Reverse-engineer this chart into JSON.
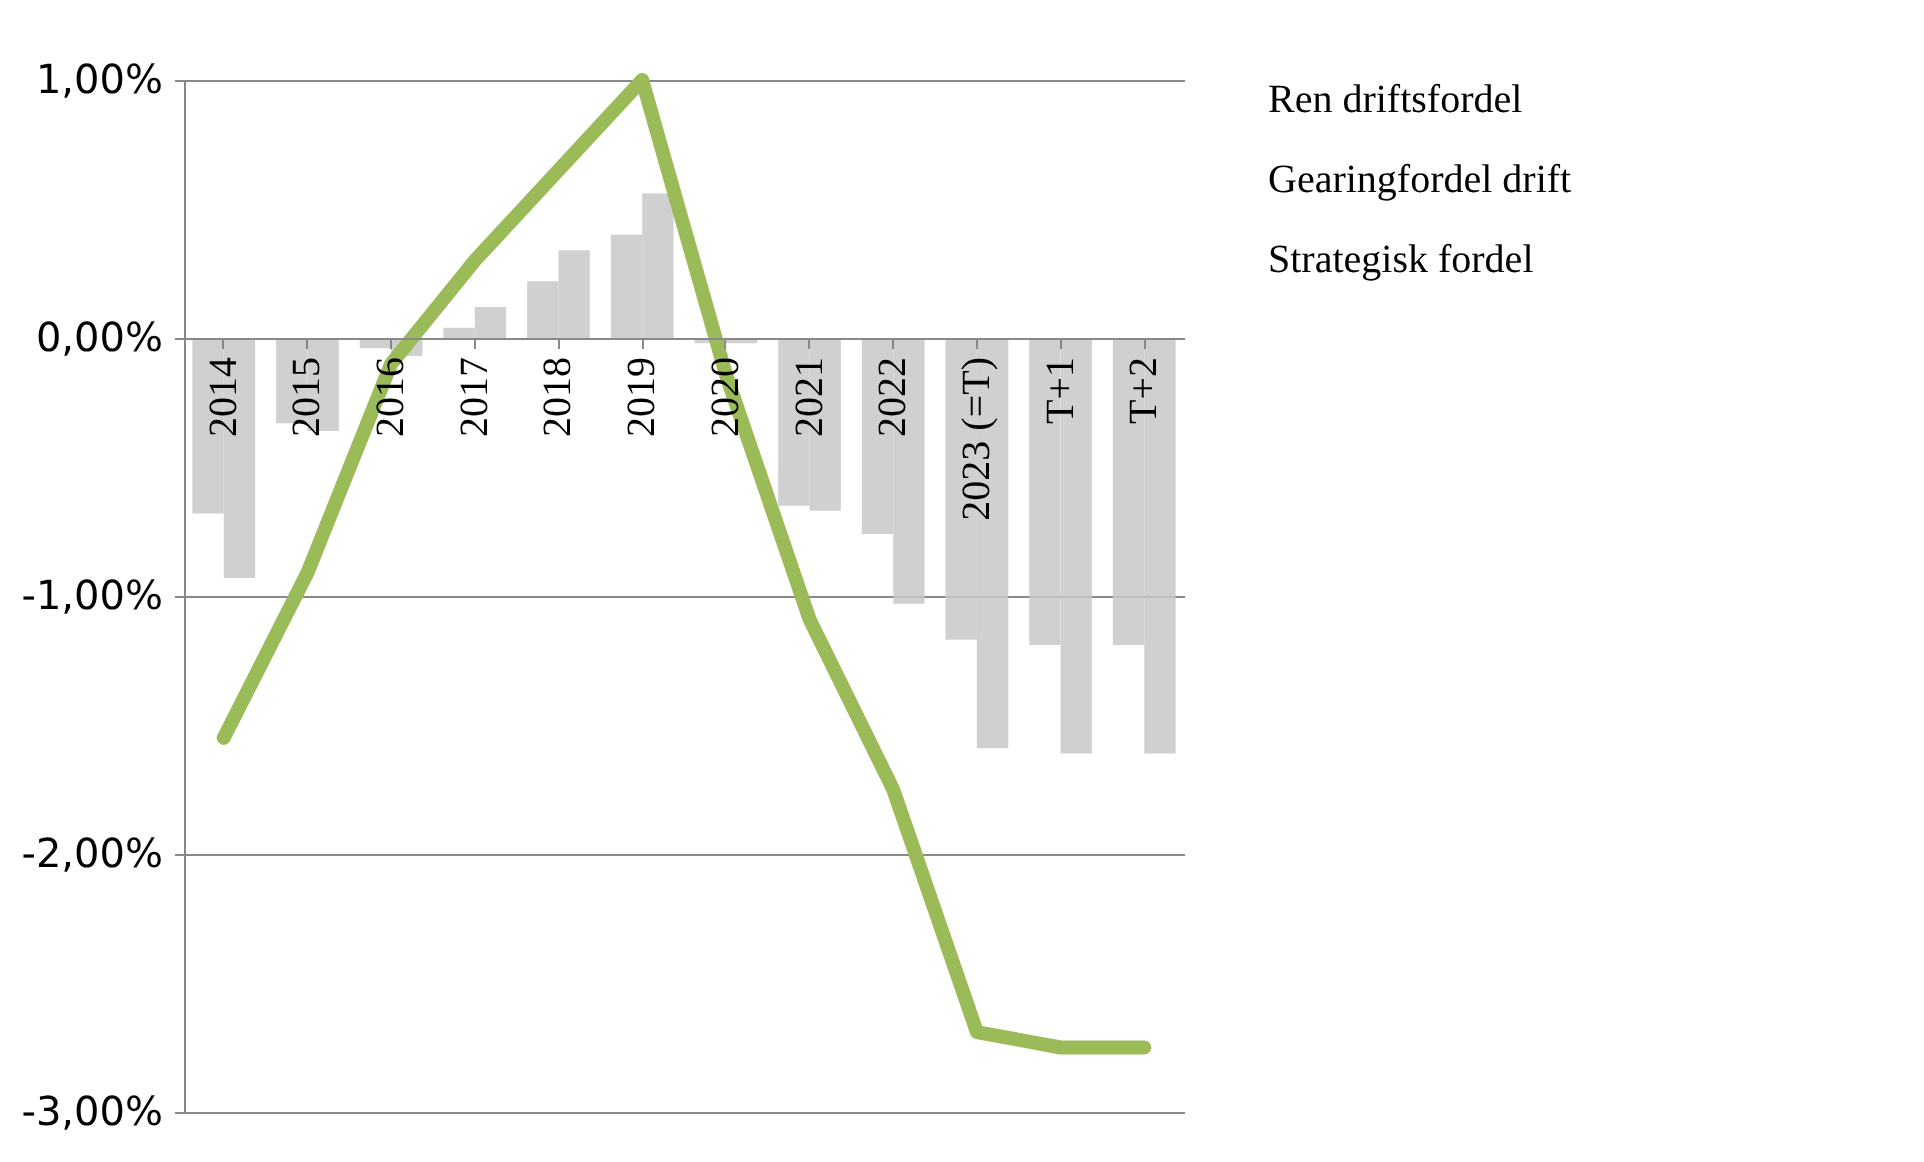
{
  "chart_data": {
    "type": "bar",
    "categories": [
      "2014",
      "2015",
      "2016",
      "2017",
      "2018",
      "2019",
      "2020",
      "2021",
      "2022",
      "2023 (=T)",
      "T+1",
      "T+2"
    ],
    "series": [
      {
        "name": "Ren driftsfordel",
        "color": "#c8c8c8",
        "values": [
          -0.68,
          -0.33,
          -0.04,
          0.04,
          0.22,
          0.4,
          -0.02,
          -0.65,
          -0.76,
          -1.17,
          -1.19,
          -1.19
        ]
      },
      {
        "name": "Gearingfordel drift",
        "color": "#c8c8c8",
        "values": [
          -0.93,
          -0.36,
          -0.07,
          0.12,
          0.34,
          0.56,
          -0.02,
          -0.67,
          -1.03,
          -1.59,
          -1.61,
          -1.61
        ]
      },
      {
        "name": "Strategisk fordel",
        "type": "line",
        "color": "#9bbb59",
        "values": [
          -1.55,
          -0.91,
          -0.1,
          0.3,
          0.65,
          1.0,
          -0.14,
          -1.09,
          -1.75,
          -2.69,
          -2.75,
          -2.75
        ]
      }
    ],
    "ylim": [
      -3,
      1
    ],
    "yticks": [
      {
        "value": -3,
        "label": "-3,00%"
      },
      {
        "value": -2,
        "label": "-2,00%"
      },
      {
        "value": -1,
        "label": "-1,00%"
      },
      {
        "value": 0,
        "label": "0,00%"
      },
      {
        "value": 1,
        "label": "1,00%"
      }
    ],
    "grid": "y",
    "legend": "right"
  }
}
